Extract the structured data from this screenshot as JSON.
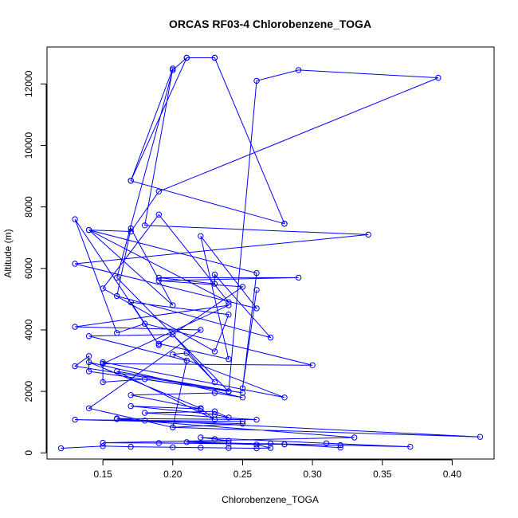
{
  "chart_data": {
    "type": "line",
    "title": "ORCAS RF03-4 Chlorobenzene_TOGA",
    "xlabel": "Chlorobenzene_TOGA",
    "ylabel": "Altitude (m)",
    "xlim": [
      0.11,
      0.43
    ],
    "ylim": [
      -200,
      13200
    ],
    "xticks": [
      0.15,
      0.2,
      0.25,
      0.3,
      0.35,
      0.4
    ],
    "xtick_labels": [
      "0.15",
      "0.20",
      "0.25",
      "0.30",
      "0.35",
      "0.40"
    ],
    "yticks": [
      0,
      2000,
      4000,
      6000,
      8000,
      10000,
      12000
    ],
    "ytick_labels": [
      "0",
      "2000",
      "4000",
      "6000",
      "8000",
      "10000",
      "12000"
    ],
    "grid": false,
    "color": "#0000ff",
    "series": [
      {
        "points": [
          [
            0.12,
            150
          ],
          [
            0.15,
            220
          ],
          [
            0.17,
            200
          ],
          [
            0.2,
            180
          ],
          [
            0.22,
            170
          ],
          [
            0.24,
            160
          ],
          [
            0.26,
            150
          ],
          [
            0.27,
            160
          ],
          [
            0.26,
            270
          ],
          [
            0.24,
            300
          ],
          [
            0.19,
            320
          ],
          [
            0.28,
            280
          ],
          [
            0.32,
            250
          ],
          [
            0.32,
            170
          ],
          [
            0.28,
            280
          ],
          [
            0.21,
            350
          ],
          [
            0.24,
            390
          ],
          [
            0.23,
            450
          ],
          [
            0.22,
            500
          ],
          [
            0.31,
            310
          ],
          [
            0.37,
            200
          ],
          [
            0.27,
            300
          ],
          [
            0.15,
            330
          ],
          [
            0.33,
            500
          ],
          [
            0.16,
            1100
          ],
          [
            0.42,
            520
          ],
          [
            0.2,
            830
          ],
          [
            0.25,
            950
          ],
          [
            0.13,
            1080
          ],
          [
            0.25,
            1020
          ],
          [
            0.18,
            1050
          ],
          [
            0.16,
            1120
          ],
          [
            0.26,
            1080
          ],
          [
            0.18,
            1300
          ],
          [
            0.23,
            1350
          ],
          [
            0.24,
            1150
          ],
          [
            0.23,
            1250
          ],
          [
            0.17,
            1520
          ],
          [
            0.22,
            1430
          ],
          [
            0.17,
            1880
          ],
          [
            0.23,
            1950
          ],
          [
            0.25,
            1800
          ],
          [
            0.14,
            2950
          ],
          [
            0.22,
            1450
          ],
          [
            0.23,
            1080
          ],
          [
            0.16,
            2650
          ],
          [
            0.25,
            1950
          ],
          [
            0.13,
            2820
          ],
          [
            0.14,
            3150
          ],
          [
            0.14,
            2650
          ],
          [
            0.24,
            2000
          ],
          [
            0.18,
            2400
          ],
          [
            0.15,
            2300
          ],
          [
            0.15,
            2950
          ],
          [
            0.28,
            1800
          ],
          [
            0.2,
            3200
          ],
          [
            0.21,
            3250
          ],
          [
            0.23,
            2300
          ],
          [
            0.2,
            3850
          ],
          [
            0.14,
            3800
          ],
          [
            0.21,
            3000
          ],
          [
            0.2,
            830
          ],
          [
            0.14,
            1450
          ],
          [
            0.22,
            4000
          ],
          [
            0.13,
            4100
          ],
          [
            0.24,
            4800
          ],
          [
            0.15,
            2900
          ],
          [
            0.3,
            2850
          ],
          [
            0.18,
            4200
          ],
          [
            0.16,
            3900
          ],
          [
            0.13,
            7600
          ],
          [
            0.19,
            3500
          ],
          [
            0.17,
            4900
          ],
          [
            0.24,
            4500
          ],
          [
            0.23,
            3300
          ],
          [
            0.15,
            5350
          ],
          [
            0.19,
            7750
          ],
          [
            0.24,
            4900
          ],
          [
            0.14,
            7250
          ],
          [
            0.2,
            4800
          ],
          [
            0.17,
            7300
          ],
          [
            0.16,
            5100
          ],
          [
            0.27,
            3750
          ],
          [
            0.23,
            5800
          ],
          [
            0.23,
            5500
          ],
          [
            0.19,
            5700
          ],
          [
            0.29,
            5700
          ],
          [
            0.19,
            5600
          ],
          [
            0.25,
            5400
          ],
          [
            0.19,
            3550
          ],
          [
            0.24,
            3050
          ],
          [
            0.22,
            7050
          ],
          [
            0.26,
            4700
          ],
          [
            0.13,
            6150
          ],
          [
            0.34,
            7100
          ],
          [
            0.18,
            7400
          ],
          [
            0.2,
            12500
          ],
          [
            0.17,
            8850
          ],
          [
            0.28,
            7450
          ],
          [
            0.23,
            12850
          ],
          [
            0.21,
            12850
          ],
          [
            0.17,
            8850
          ],
          [
            0.28,
            7450
          ],
          [
            0.23,
            12850
          ],
          [
            0.21,
            12850
          ],
          [
            0.2,
            12450
          ],
          [
            0.16,
            5700
          ],
          [
            0.24,
            2000
          ],
          [
            0.26,
            12100
          ],
          [
            0.29,
            12450
          ],
          [
            0.39,
            12200
          ],
          [
            0.19,
            8500
          ],
          [
            0.17,
            7200
          ],
          [
            0.14,
            7250
          ],
          [
            0.26,
            5850
          ],
          [
            0.25,
            2100
          ],
          [
            0.26,
            5300
          ]
        ]
      }
    ]
  }
}
